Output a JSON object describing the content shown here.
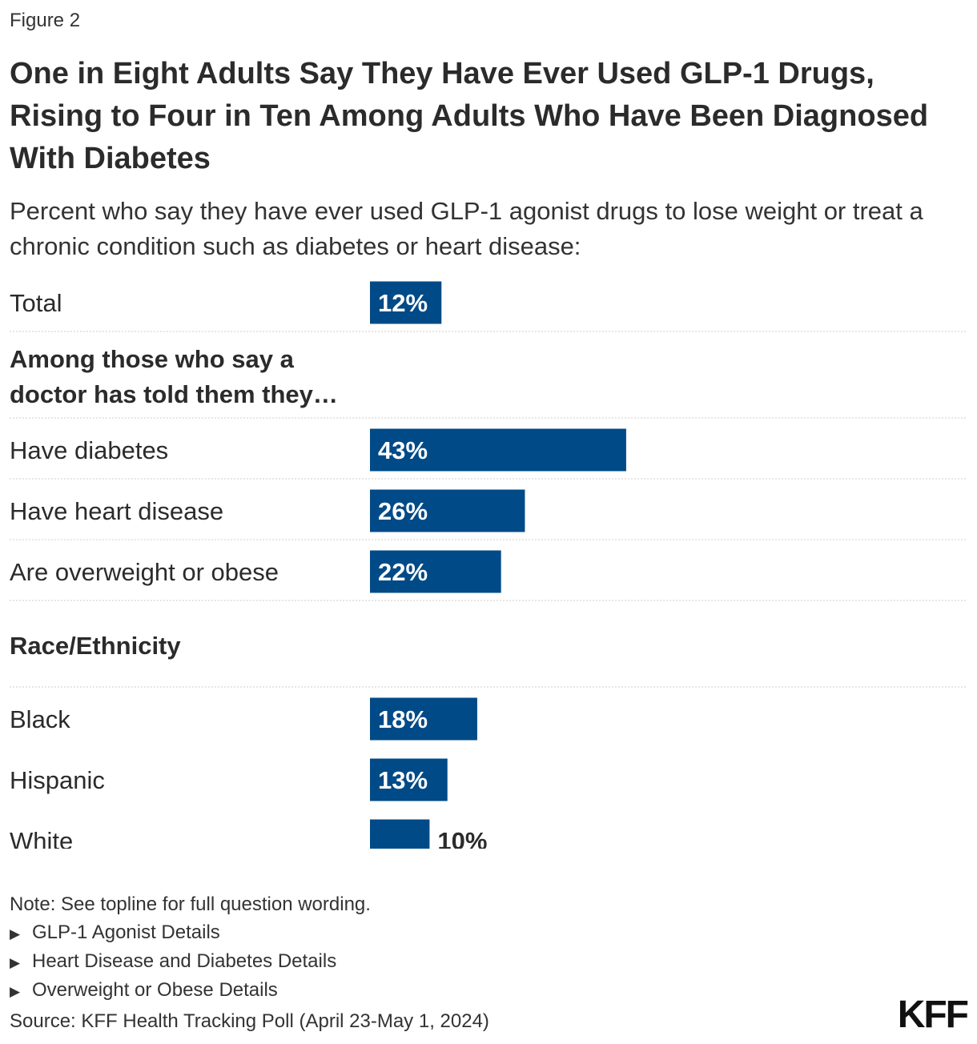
{
  "figure_label": "Figure 2",
  "title": "One in Eight Adults Say They Have Ever Used GLP-1 Drugs, Rising to Four in Ten Among Adults Who Have Been Diagnosed With Diabetes",
  "subtitle": "Percent who say they have ever used GLP-1 agonist drugs to lose weight or treat a chronic condition such as diabetes or heart disease:",
  "colors": {
    "bar": "#004a87",
    "label_inside": "#ffffff",
    "label_outside": "#2b2b2b",
    "divider": "#cccccc"
  },
  "chart_data": {
    "type": "bar",
    "orientation": "horizontal",
    "title": "One in Eight Adults Say They Have Ever Used GLP-1 Drugs, Rising to Four in Ten Among Adults Who Have Been Diagnosed With Diabetes",
    "unit": "%",
    "xlim": [
      0,
      100
    ],
    "grid": false,
    "rows": [
      {
        "kind": "bar",
        "category": "Total",
        "value": 12,
        "label": "12%"
      },
      {
        "kind": "group",
        "label": "Among those who say a doctor has told them they…"
      },
      {
        "kind": "bar",
        "category": "Have diabetes",
        "value": 43,
        "label": "43%"
      },
      {
        "kind": "bar",
        "category": "Have heart disease",
        "value": 26,
        "label": "26%"
      },
      {
        "kind": "bar",
        "category": "Are overweight or obese",
        "value": 22,
        "label": "22%"
      },
      {
        "kind": "group",
        "label": "Race/Ethnicity"
      },
      {
        "kind": "bar",
        "category": "Black",
        "value": 18,
        "label": "18%"
      },
      {
        "kind": "bar",
        "category": "Hispanic",
        "value": 13,
        "label": "13%"
      },
      {
        "kind": "bar",
        "category": "White",
        "value": 10,
        "label": "10%"
      }
    ]
  },
  "note": "Note: See topline for full question wording.",
  "details": [
    "GLP-1 Agonist Details",
    "Heart Disease and Diabetes Details",
    "Overweight or Obese Details"
  ],
  "source": "Source: KFF Health Tracking Poll (April 23-May 1, 2024)",
  "logo_text": "KFF"
}
